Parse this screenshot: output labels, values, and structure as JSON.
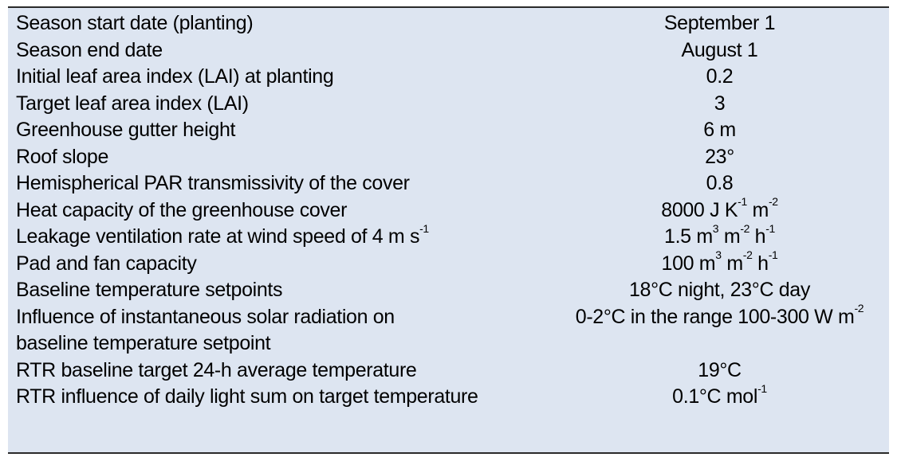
{
  "table": {
    "rows": [
      {
        "parameter": "Season start date (planting)",
        "value": "September 1"
      },
      {
        "parameter": "Season end date",
        "value": "August 1"
      },
      {
        "parameter": "Initial leaf area index (LAI) at planting",
        "value": "0.2"
      },
      {
        "parameter": "Target leaf area index (LAI)",
        "value": "3"
      },
      {
        "parameter": "Greenhouse gutter height",
        "value": "6 m"
      },
      {
        "parameter": "Roof slope",
        "value": "23°"
      },
      {
        "parameter": "Hemispherical PAR transmissivity of the cover",
        "value": "0.8"
      },
      {
        "parameter": "Heat capacity of the greenhouse cover",
        "value_main": "8000 J K",
        "value_sup1": "-1",
        "value_mid": " m",
        "value_sup2": "-2"
      },
      {
        "parameter_main": "Leakage ventilation rate at wind speed of 4 m s",
        "parameter_sup": "-1",
        "value_main": "1.5 m",
        "value_sup1": "3",
        "value_mid": " m",
        "value_sup2": "-2",
        "value_mid2": " h",
        "value_sup3": "-1"
      },
      {
        "parameter": "Pad and fan capacity",
        "value_main": "100 m",
        "value_sup1": "3",
        "value_mid": " m",
        "value_sup2": "-2",
        "value_mid2": " h",
        "value_sup3": "-1"
      },
      {
        "parameter": "Baseline temperature setpoints",
        "value": "18°C night, 23°C day"
      },
      {
        "parameter": "Influence of instantaneous solar radiation on",
        "value_main": "0-2°C in the range 100-300 W m",
        "value_sup1": "-2"
      },
      {
        "parameter": "baseline temperature setpoint",
        "value": ""
      },
      {
        "parameter": "RTR baseline target 24-h average temperature",
        "value": "19°C"
      },
      {
        "parameter": "RTR influence of daily light sum on target temperature",
        "value_main": "0.1°C mol",
        "value_sup1": "-1"
      }
    ]
  }
}
